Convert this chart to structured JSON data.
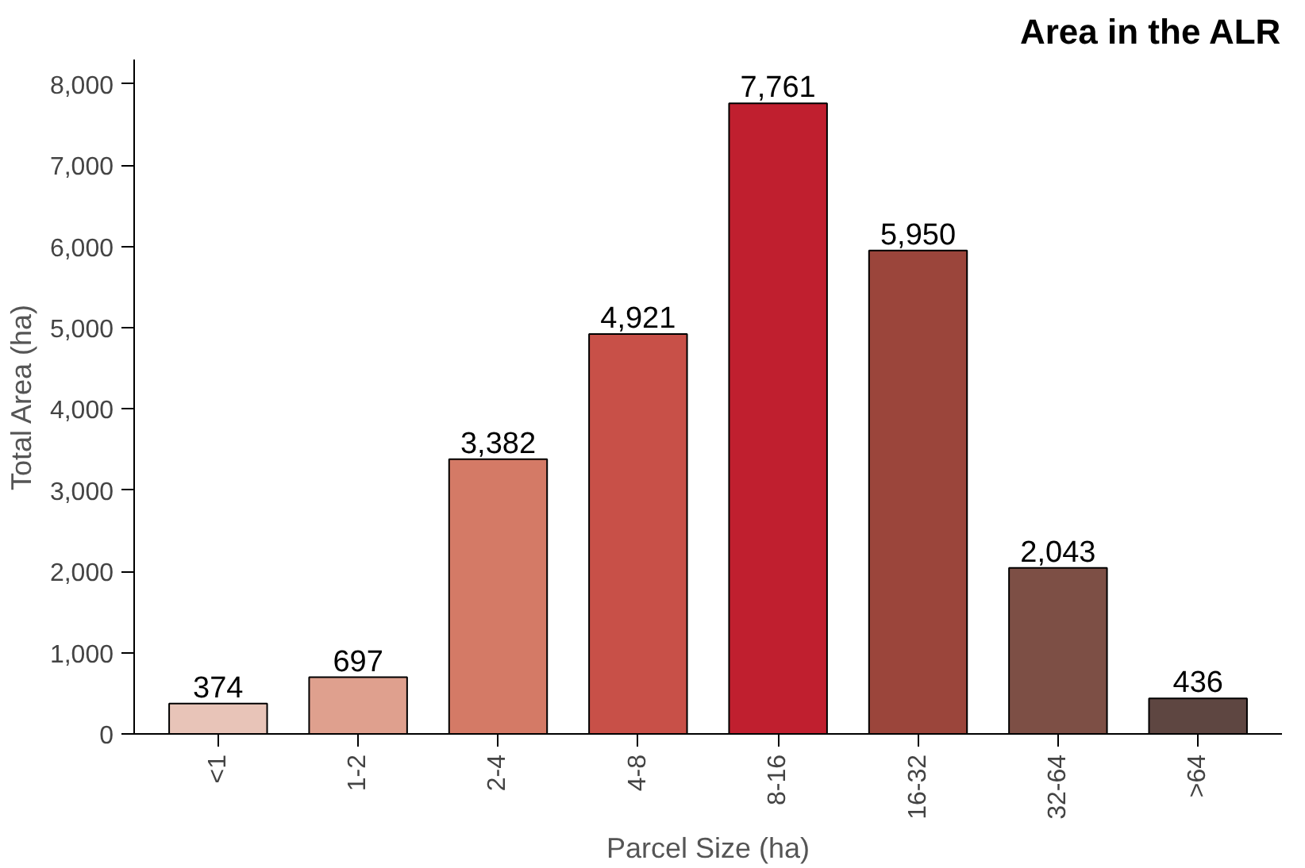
{
  "chart_data": {
    "type": "bar",
    "title": "Area in the ALR",
    "xlabel": "Parcel Size (ha)",
    "ylabel": "Total Area (ha)",
    "categories": [
      "<1",
      "1-2",
      "2-4",
      "4-8",
      "8-16",
      "16-32",
      "32-64",
      ">64"
    ],
    "values": [
      374,
      697,
      3382,
      4921,
      7761,
      5950,
      2043,
      436
    ],
    "colors": [
      "#e8c4b8",
      "#dfa08e",
      "#d47a66",
      "#c85048",
      "#c01f2f",
      "#9b453b",
      "#7d4f45",
      "#5e4641"
    ],
    "ylim": [
      0,
      8300
    ],
    "yticks": [
      0,
      {
        "value": 1000,
        "label": "1,000"
      },
      {
        "value": 2000,
        "label": "2,000"
      },
      {
        "value": 3000,
        "label": "3,000"
      },
      {
        "value": 4000,
        "label": "4,000"
      },
      {
        "value": 5000,
        "label": "5,000"
      },
      {
        "value": 6000,
        "label": "6,000"
      },
      {
        "value": 7000,
        "label": "7,000"
      },
      {
        "value": 8000,
        "label": "8,000"
      }
    ],
    "value_labels": [
      "374",
      "697",
      "3,382",
      "4,921",
      "7,761",
      "5,950",
      "2,043",
      "436"
    ],
    "grid": false
  }
}
